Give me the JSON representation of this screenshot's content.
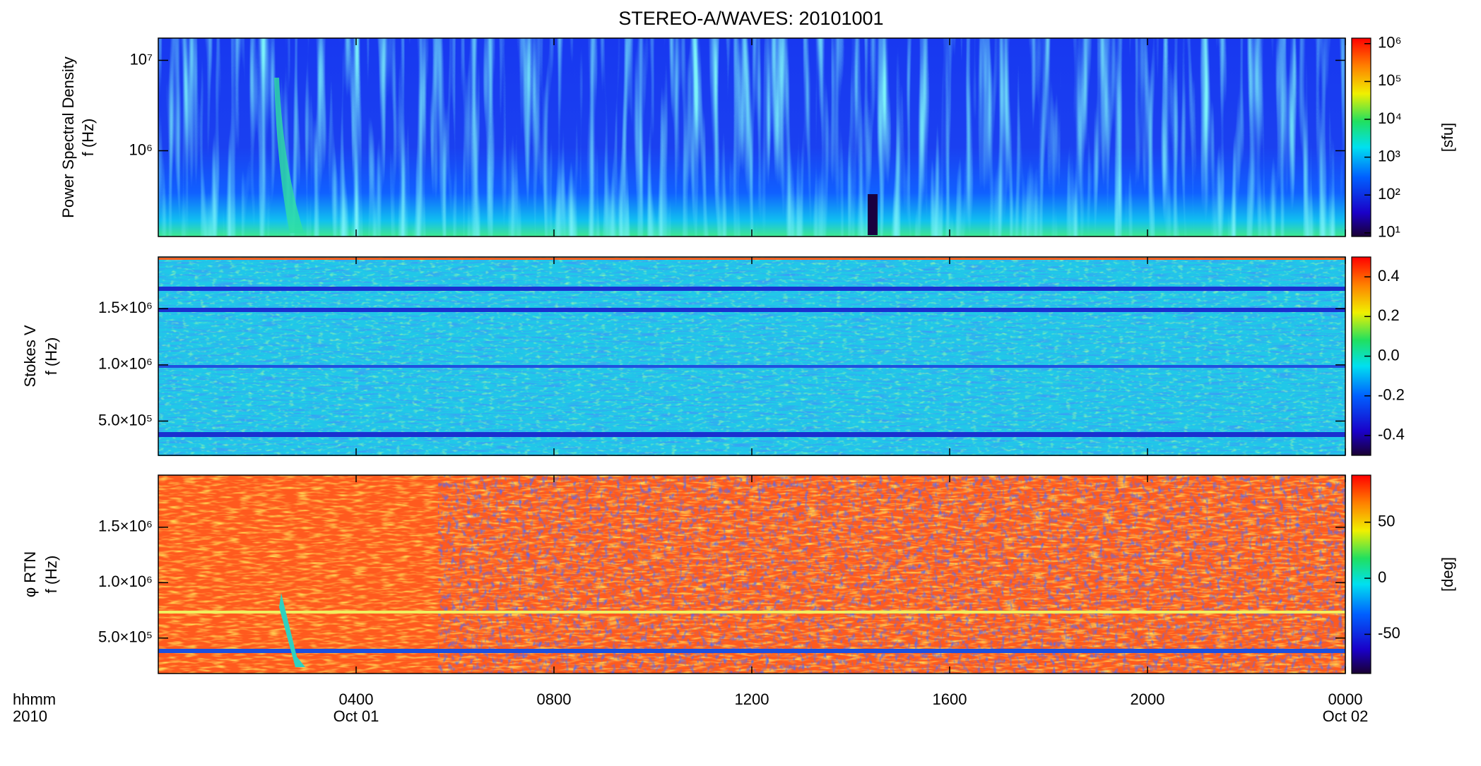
{
  "chart_data": {
    "type": "spectrogram",
    "title": "STEREO-A/WAVES: 20101001",
    "x_label_lines": [
      "hhmm",
      "2010"
    ],
    "xlim": [
      0,
      24
    ],
    "xticks": [
      {
        "value": 4,
        "label": "0400"
      },
      {
        "value": 8,
        "label": "0800"
      },
      {
        "value": 12,
        "label": "1200"
      },
      {
        "value": 16,
        "label": "1600"
      },
      {
        "value": 20,
        "label": "2000"
      },
      {
        "value": 24,
        "label": "0000"
      }
    ],
    "date_labels": [
      {
        "value": 4,
        "label": "Oct 01"
      },
      {
        "value": 24,
        "label": "Oct 02"
      }
    ],
    "panels": [
      {
        "ylabel_lines": [
          "Power Spectral Density",
          "f (Hz)"
        ],
        "ylog": true,
        "ylim": [
          112500,
          17600000
        ],
        "yticks": [
          {
            "value": 1000000,
            "label": "10⁶"
          },
          {
            "value": 10000000,
            "label": "10⁷"
          }
        ],
        "colorbar_label": "[sfu]",
        "clog": true,
        "clim": [
          8,
          1400000
        ],
        "cticks": [
          {
            "value": 10,
            "label": "10¹"
          },
          {
            "value": 100,
            "label": "10²"
          },
          {
            "value": 1000,
            "label": "10³"
          },
          {
            "value": 10000,
            "label": "10⁴"
          },
          {
            "value": 100000,
            "label": "10⁵"
          },
          {
            "value": 1000000,
            "label": "10⁶"
          }
        ]
      },
      {
        "ylabel_lines": [
          "Stokes V",
          "f (Hz)"
        ],
        "ylog": false,
        "ylim": [
          195000,
          1960000
        ],
        "yticks": [
          {
            "value": 500000,
            "label": "5.0×10⁵"
          },
          {
            "value": 1000000,
            "label": "1.0×10⁶"
          },
          {
            "value": 1500000,
            "label": "1.5×10⁶"
          }
        ],
        "clog": false,
        "clim": [
          -0.5,
          0.5
        ],
        "cticks": [
          {
            "value": -0.4,
            "label": "-0.4"
          },
          {
            "value": -0.2,
            "label": "-0.2"
          },
          {
            "value": 0,
            "label": "0.0"
          },
          {
            "value": 0.2,
            "label": "0.2"
          },
          {
            "value": 0.4,
            "label": "0.4"
          }
        ]
      },
      {
        "ylabel_lines": [
          "φ RTN",
          "f (Hz)"
        ],
        "ylog": false,
        "ylim": [
          180000,
          1970000
        ],
        "yticks": [
          {
            "value": 500000,
            "label": "5.0×10⁵"
          },
          {
            "value": 1000000,
            "label": "1.0×10⁶"
          },
          {
            "value": 1500000,
            "label": "1.5×10⁶"
          }
        ],
        "colorbar_label": "[deg]",
        "clog": false,
        "clim": [
          -85,
          92
        ],
        "cticks": [
          -50,
          0,
          50
        ]
      }
    ]
  }
}
